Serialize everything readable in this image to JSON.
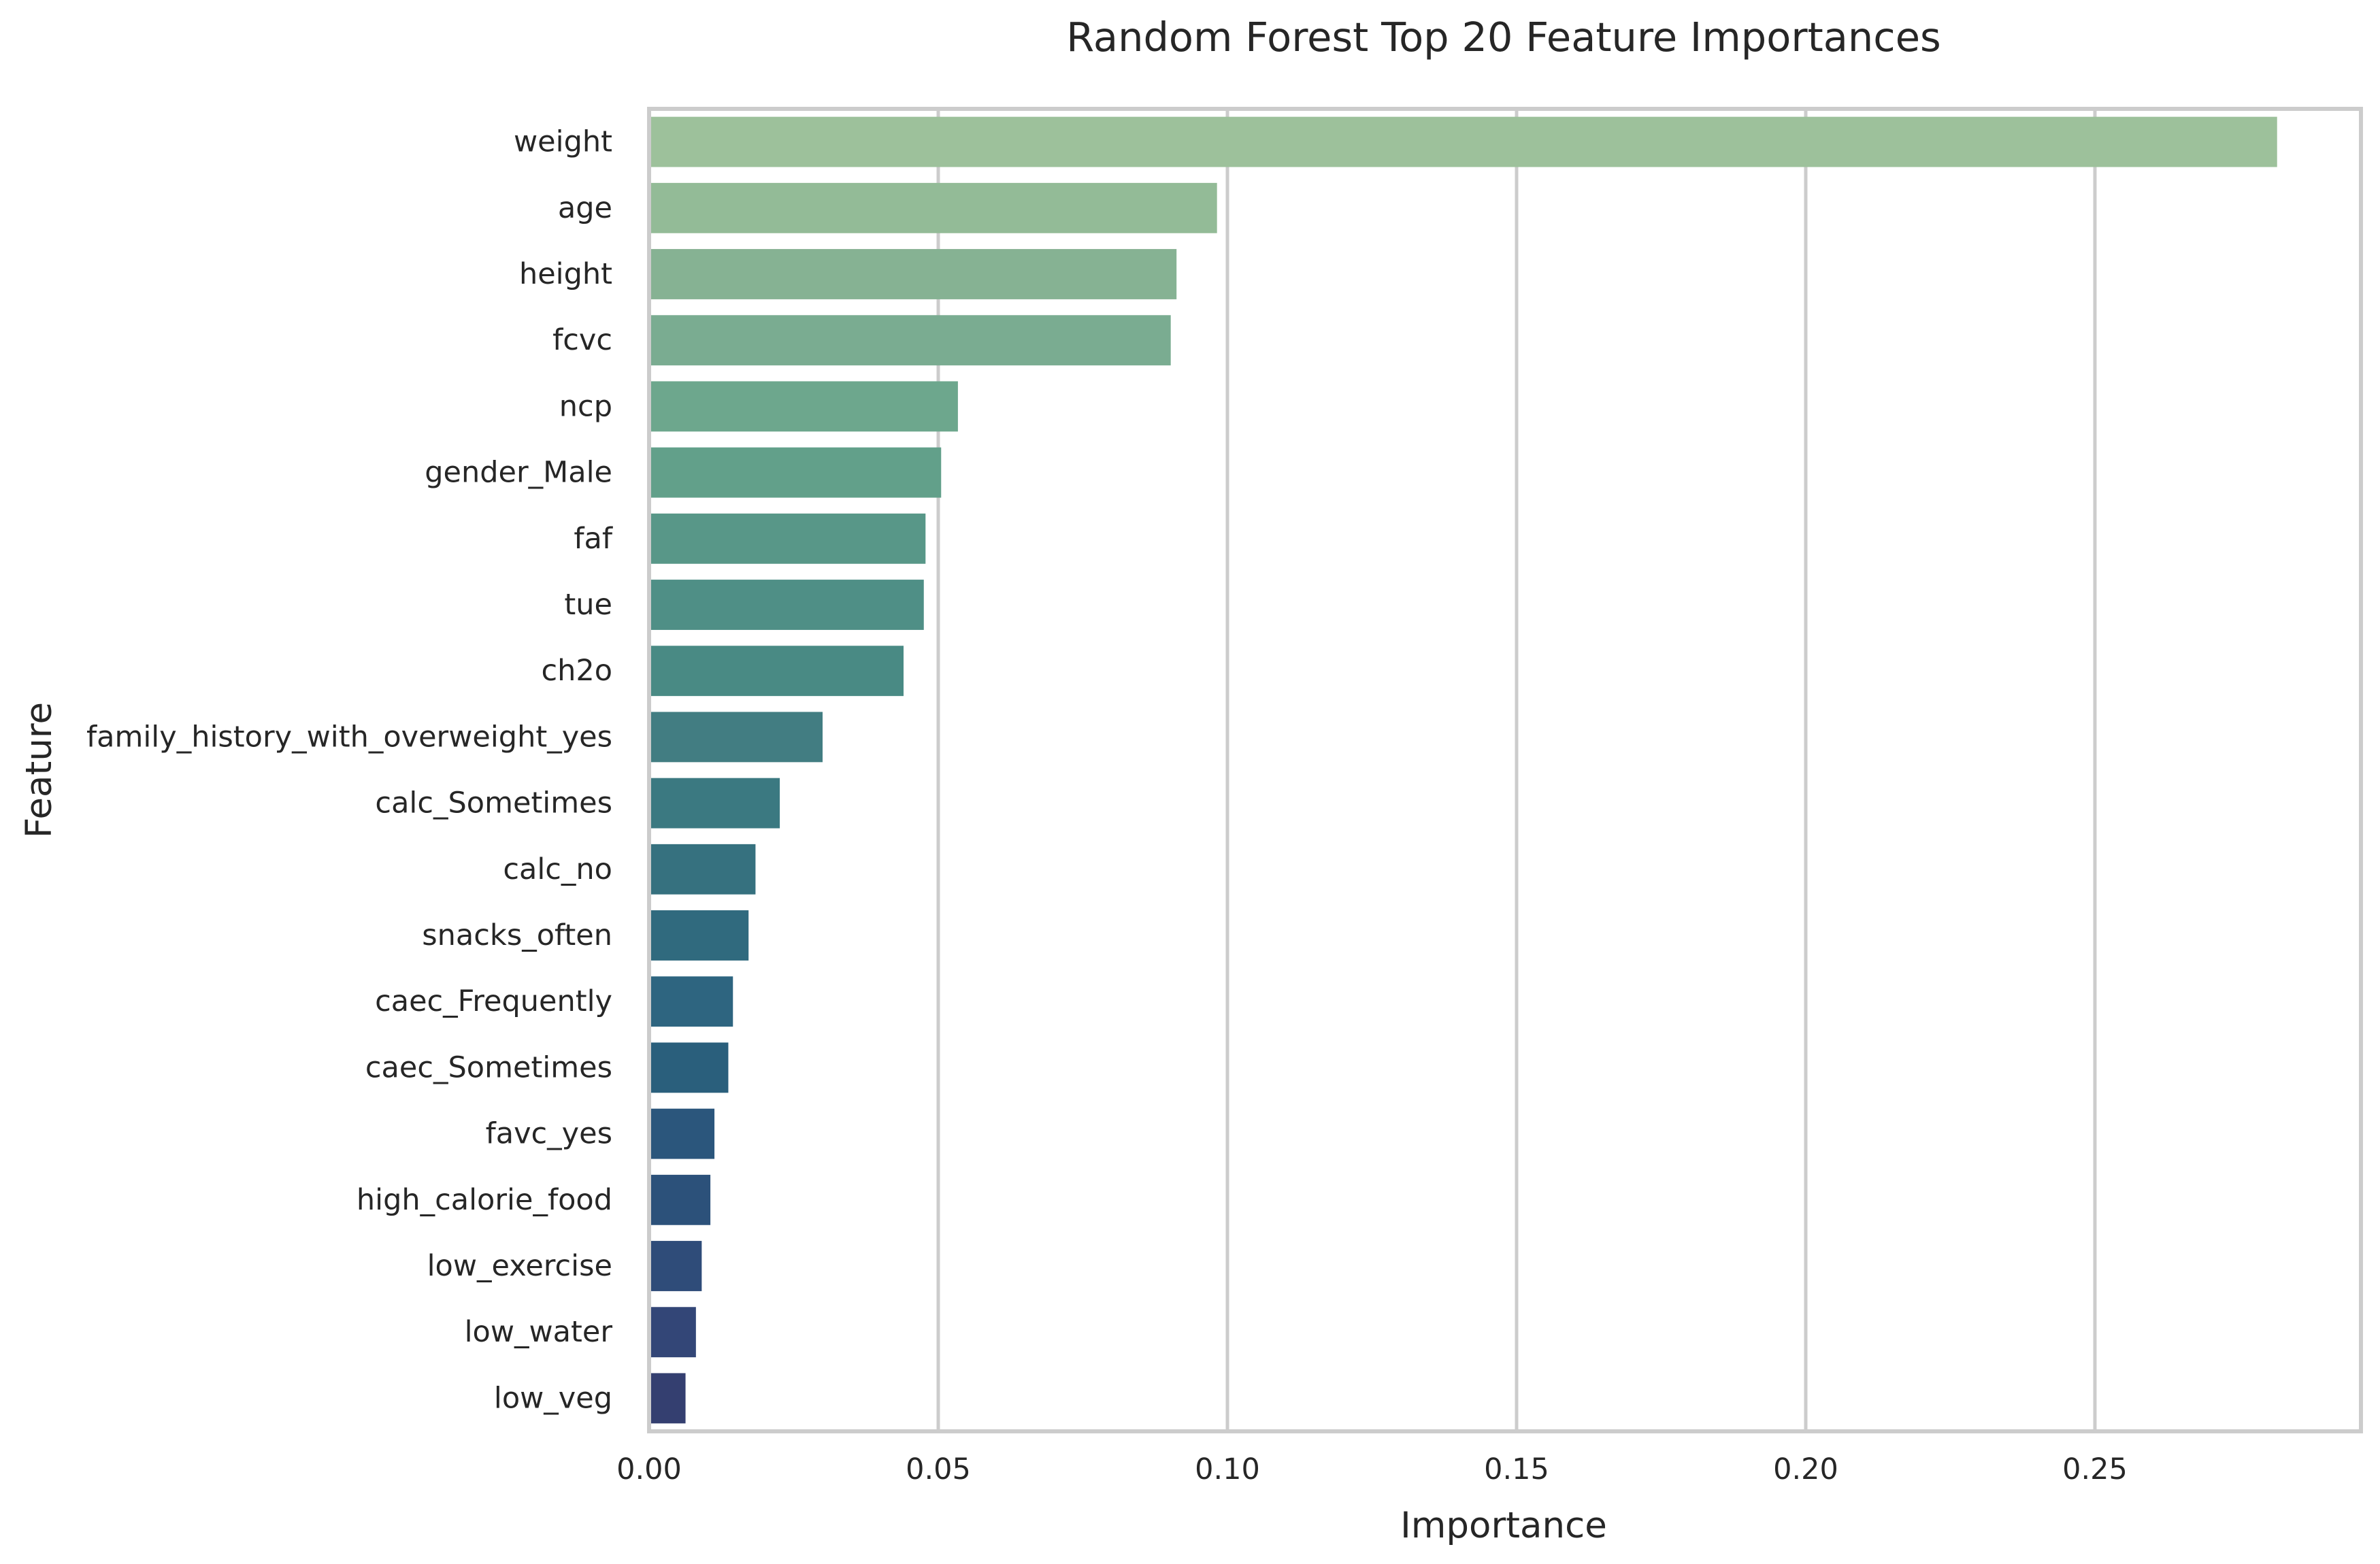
{
  "chart_data": {
    "type": "bar",
    "orientation": "horizontal",
    "title": "Random Forest Top 20 Feature Importances",
    "xlabel": "Importance",
    "ylabel": "Feature",
    "xlim": [
      0,
      0.296
    ],
    "xticks": [
      0.0,
      0.05,
      0.1,
      0.15,
      0.2,
      0.25
    ],
    "xtick_labels": [
      "0.00",
      "0.05",
      "0.10",
      "0.15",
      "0.20",
      "0.25"
    ],
    "grid": true,
    "categories": [
      "weight",
      "age",
      "height",
      "fcvc",
      "ncp",
      "gender_Male",
      "faf",
      "tue",
      "ch2o",
      "family_history_with_overweight_yes",
      "calc_Sometimes",
      "calc_no",
      "snacks_often",
      "caec_Frequently",
      "caec_Sometimes",
      "favc_yes",
      "high_calorie_food",
      "low_exercise",
      "low_water",
      "low_veg"
    ],
    "values": [
      0.2815,
      0.0982,
      0.0912,
      0.0902,
      0.0534,
      0.0505,
      0.0478,
      0.0475,
      0.044,
      0.03,
      0.0226,
      0.0184,
      0.0172,
      0.0145,
      0.0137,
      0.0113,
      0.0106,
      0.0091,
      0.0081,
      0.0063
    ],
    "colors": [
      "#9dc19b",
      "#93bb97",
      "#86b293",
      "#7aac91",
      "#6da78d",
      "#62a08a",
      "#589788",
      "#4f8f86",
      "#498a84",
      "#427d82",
      "#3b7981",
      "#36717f",
      "#306a7e",
      "#2e6580",
      "#2a5f7c",
      "#2b567c",
      "#2c517a",
      "#2f4c79",
      "#334677",
      "#343f70"
    ]
  }
}
